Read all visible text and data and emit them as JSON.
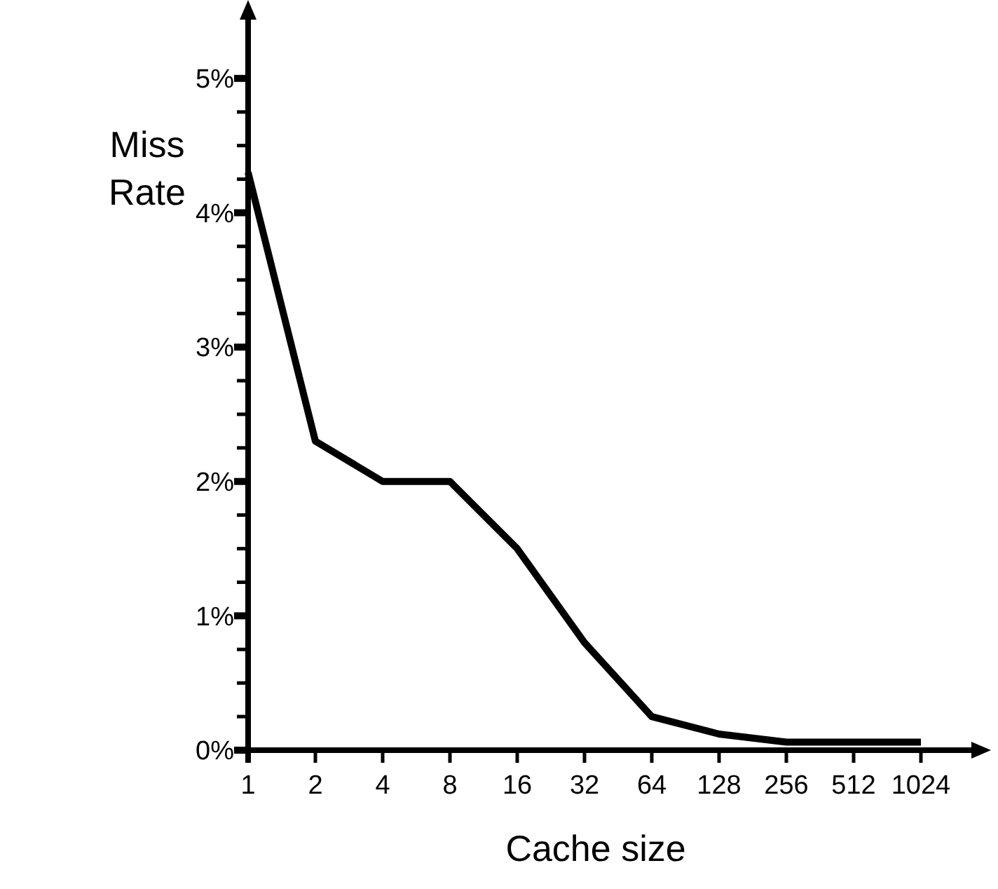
{
  "chart_data": {
    "type": "line",
    "xlabel": "Cache size",
    "ylabel": "Miss Rate",
    "categories": [
      "1",
      "2",
      "4",
      "8",
      "16",
      "32",
      "64",
      "128",
      "256",
      "512",
      "1024"
    ],
    "series": [
      {
        "color": "#000000",
        "values": [
          4.3,
          2.3,
          2.0,
          2.0,
          1.5,
          0.8,
          0.25,
          0.12,
          0.06,
          0.06,
          0.06
        ]
      }
    ],
    "ylim": [
      0,
      5.5
    ],
    "yticks": [
      {
        "value": 0,
        "label": "0%"
      },
      {
        "value": 0.25,
        "label": null
      },
      {
        "value": 0.5,
        "label": null
      },
      {
        "value": 0.75,
        "label": null
      },
      {
        "value": 1,
        "label": "1%"
      },
      {
        "value": 1.25,
        "label": null
      },
      {
        "value": 1.5,
        "label": null
      },
      {
        "value": 1.75,
        "label": null
      },
      {
        "value": 2,
        "label": "2%"
      },
      {
        "value": 2.25,
        "label": null
      },
      {
        "value": 2.5,
        "label": null
      },
      {
        "value": 2.75,
        "label": null
      },
      {
        "value": 3,
        "label": "3%"
      },
      {
        "value": 3.25,
        "label": null
      },
      {
        "value": 3.5,
        "label": null
      },
      {
        "value": 3.75,
        "label": null
      },
      {
        "value": 4,
        "label": "4%"
      },
      {
        "value": 4.25,
        "label": null
      },
      {
        "value": 4.5,
        "label": null
      },
      {
        "value": 4.75,
        "label": null
      },
      {
        "value": 5,
        "label": "5%"
      }
    ],
    "marker": "none",
    "line_style": "solid"
  }
}
